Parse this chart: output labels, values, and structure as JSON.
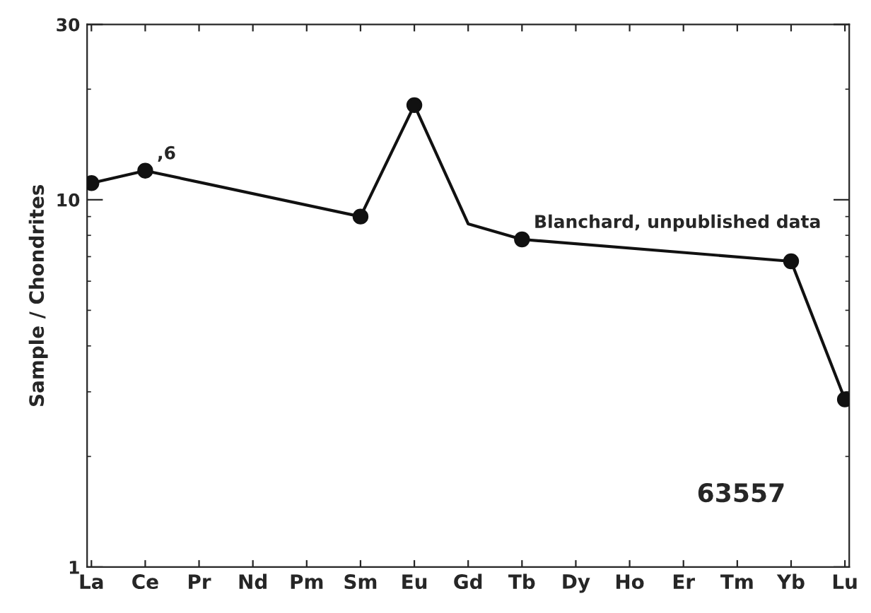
{
  "chart_data": {
    "type": "line",
    "ylabel": "Sample / Chondrites",
    "categories": [
      "La",
      "Ce",
      "Pr",
      "Nd",
      "Pm",
      "Sm",
      "Eu",
      "Gd",
      "Tb",
      "Dy",
      "Ho",
      "Er",
      "Tm",
      "Yb",
      "Lu"
    ],
    "series": [
      {
        "color": "#111111",
        "marker": "none",
        "values": [
          11.1,
          12.0,
          null,
          null,
          null,
          9.0,
          18.1,
          8.6,
          7.8,
          null,
          null,
          null,
          null,
          6.8,
          2.86
        ]
      },
      {
        "type": "scatter",
        "color": "#111111",
        "marker": "circle",
        "values": [
          11.1,
          12.0,
          null,
          null,
          null,
          9.0,
          18.1,
          null,
          7.8,
          null,
          null,
          null,
          null,
          6.8,
          2.86
        ]
      }
    ],
    "log": "y",
    "ylim": [
      1,
      30
    ],
    "yticks": [
      1,
      10,
      30
    ],
    "grid": false,
    "legend": false,
    "annotations": [
      {
        "text": ",6",
        "x": "Ce",
        "y": 12.0
      },
      {
        "text": "Blanchard, unpublished data",
        "x": "Tb",
        "y": 7.8
      },
      "63557"
    ]
  }
}
